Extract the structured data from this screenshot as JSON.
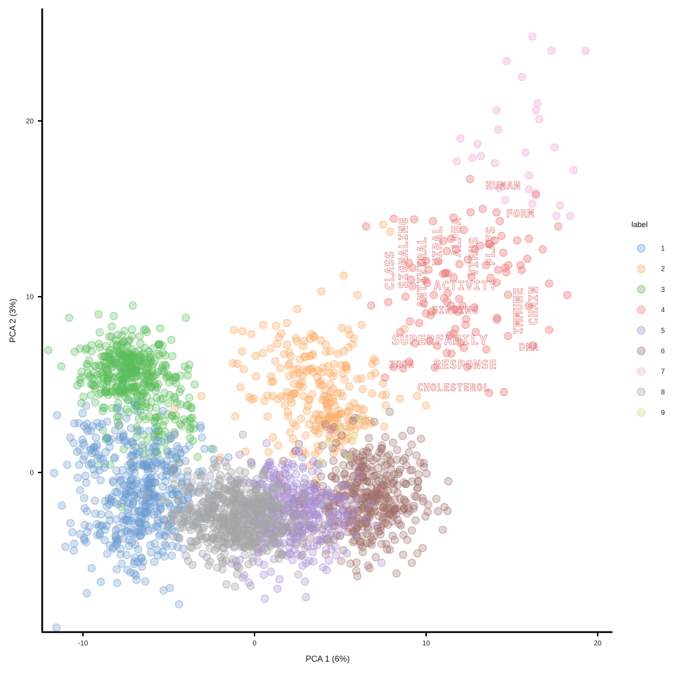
{
  "chart_data": {
    "type": "scatter",
    "title": "",
    "xlabel": "PCA 1 (6%)",
    "ylabel": "PCA 2 (3%)",
    "xlim": [
      -12.5,
      20.9
    ],
    "ylim": [
      -9.1,
      26.4
    ],
    "xticks": [
      -10,
      0,
      10,
      20
    ],
    "yticks": [
      0,
      10,
      20
    ],
    "grid": false,
    "legend": {
      "title": "label",
      "position": "right",
      "entries": [
        {
          "label": "1",
          "color": "#6b9bd2"
        },
        {
          "label": "2",
          "color": "#fdae6b"
        },
        {
          "label": "3",
          "color": "#5bbd5b"
        },
        {
          "label": "4",
          "color": "#f08080"
        },
        {
          "label": "5",
          "color": "#a58bd0"
        },
        {
          "label": "6",
          "color": "#a0706a"
        },
        {
          "label": "7",
          "color": "#f2b6dc"
        },
        {
          "label": "8",
          "color": "#a5a5a5"
        },
        {
          "label": "9",
          "color": "#d4d98a"
        }
      ]
    },
    "series": [
      {
        "name": "1",
        "color": "#6b9bd2",
        "alpha": 0.3,
        "clusters": [
          {
            "cx": -6.5,
            "cy": -1.5,
            "sx": 1.6,
            "sy": 2.2,
            "n": 420,
            "rot": -0.5
          },
          {
            "cx": -9.0,
            "cy": 1.5,
            "sx": 1.2,
            "sy": 1.2,
            "n": 60,
            "rot": 0
          }
        ]
      },
      {
        "name": "2",
        "color": "#fdae6b",
        "alpha": 0.35,
        "clusters": [
          {
            "cx": 3.5,
            "cy": 5.0,
            "sx": 2.2,
            "sy": 1.7,
            "n": 190,
            "rot": 0.2
          },
          {
            "cx": 4.8,
            "cy": 2.8,
            "sx": 1.0,
            "sy": 0.6,
            "n": 60,
            "rot": 0
          }
        ]
      },
      {
        "name": "3",
        "color": "#5bbd5b",
        "alpha": 0.3,
        "clusters": [
          {
            "cx": -7.5,
            "cy": 5.8,
            "sx": 1.3,
            "sy": 1.0,
            "n": 330,
            "rot": 0
          },
          {
            "cx": -5.5,
            "cy": 3.0,
            "sx": 1.6,
            "sy": 1.6,
            "n": 120,
            "rot": 0.3
          }
        ]
      },
      {
        "name": "4",
        "color": "#f08080",
        "alpha": 0.4,
        "clusters": [
          {
            "cx": 12.0,
            "cy": 10.0,
            "sx": 2.2,
            "sy": 2.4,
            "n": 70,
            "rot": 0.3
          }
        ]
      },
      {
        "name": "5",
        "color": "#a58bd0",
        "alpha": 0.3,
        "clusters": [
          {
            "cx": 2.0,
            "cy": -2.2,
            "sx": 1.8,
            "sy": 1.6,
            "n": 420,
            "rot": 0.1
          }
        ]
      },
      {
        "name": "6",
        "color": "#a0706a",
        "alpha": 0.3,
        "clusters": [
          {
            "cx": 6.5,
            "cy": -1.5,
            "sx": 1.6,
            "sy": 1.7,
            "n": 420,
            "rot": 0
          }
        ]
      },
      {
        "name": "7",
        "color": "#f2b6dc",
        "alpha": 0.45,
        "points": [
          [
            16.2,
            24.8
          ],
          [
            17.3,
            24.0
          ],
          [
            19.3,
            24.0
          ],
          [
            14.7,
            23.4
          ],
          [
            15.6,
            22.5
          ],
          [
            12.0,
            19.0
          ],
          [
            14.1,
            20.6
          ],
          [
            16.5,
            21.0
          ],
          [
            16.4,
            20.6
          ],
          [
            16.6,
            20.1
          ],
          [
            14.2,
            19.5
          ],
          [
            13.0,
            18.7
          ],
          [
            13.2,
            18.0
          ],
          [
            15.8,
            18.2
          ],
          [
            17.5,
            18.5
          ],
          [
            11.8,
            17.7
          ],
          [
            12.7,
            17.9
          ],
          [
            14.0,
            17.6
          ],
          [
            18.6,
            17.2
          ],
          [
            16.0,
            16.9
          ],
          [
            14.3,
            16.2
          ],
          [
            16.0,
            16.1
          ],
          [
            14.6,
            15.5
          ],
          [
            16.4,
            15.9
          ],
          [
            16.2,
            15.3
          ],
          [
            17.8,
            15.2
          ],
          [
            18.4,
            14.6
          ],
          [
            17.6,
            14.6
          ]
        ]
      },
      {
        "name": "8",
        "color": "#a5a5a5",
        "alpha": 0.35,
        "clusters": [
          {
            "cx": -1.3,
            "cy": -2.5,
            "sx": 1.7,
            "sy": 1.3,
            "n": 520,
            "rot": 0
          }
        ]
      },
      {
        "name": "9",
        "color": "#d4d98a",
        "alpha": 0.45,
        "points": [
          [
            5.0,
            2.5
          ],
          [
            4.3,
            1.7
          ],
          [
            5.8,
            2.1
          ],
          [
            6.2,
            3.0
          ],
          [
            3.9,
            0.6
          ],
          [
            5.5,
            0.9
          ]
        ]
      }
    ],
    "outliers": {
      "4": [
        [
          13.3,
          15.0
        ],
        [
          11.6,
          14.5
        ],
        [
          12.6,
          14.8
        ],
        [
          14.1,
          14.8
        ],
        [
          10.4,
          14.3
        ],
        [
          14.3,
          14.3
        ],
        [
          9.3,
          14.4
        ],
        [
          6.5,
          14.0
        ],
        [
          12.2,
          13.8
        ],
        [
          15.3,
          13.2
        ],
        [
          16.8,
          12.7
        ],
        [
          17.7,
          14.0
        ],
        [
          14.5,
          12.5
        ],
        [
          14.0,
          13.2
        ],
        [
          11.2,
          12.6
        ],
        [
          13.5,
          11.8
        ],
        [
          14.8,
          11.8
        ],
        [
          11.0,
          11.3
        ],
        [
          9.2,
          10.6
        ],
        [
          8.8,
          10.0
        ],
        [
          6.8,
          9.5
        ],
        [
          7.8,
          9.7
        ],
        [
          9.6,
          8.5
        ],
        [
          12.3,
          8.4
        ],
        [
          10.2,
          7.5
        ],
        [
          11.6,
          7.9
        ],
        [
          13.5,
          7.0
        ],
        [
          12.2,
          7.1
        ],
        [
          7.6,
          5.4
        ],
        [
          8.1,
          6.0
        ],
        [
          9.0,
          6.3
        ],
        [
          11.2,
          6.8
        ],
        [
          12.4,
          6.0
        ],
        [
          15.5,
          11.8
        ],
        [
          16.4,
          15.8
        ],
        [
          16.0,
          13.3
        ]
      ],
      "1": [
        [
          -10.2,
          1.3
        ],
        [
          -10.3,
          -0.3
        ],
        [
          -7.6,
          -2.7
        ],
        [
          -6.8,
          -5.1
        ],
        [
          -5.3,
          -6.7
        ],
        [
          -4.4,
          -7.5
        ],
        [
          -9.3,
          -1.6
        ]
      ],
      "3": [
        [
          -10.8,
          8.8
        ],
        [
          -9.1,
          9.0
        ],
        [
          -7.1,
          9.5
        ],
        [
          -4.0,
          8.8
        ],
        [
          -8.2,
          8.9
        ],
        [
          -5.5,
          8.2
        ]
      ],
      "2": [
        [
          3.9,
          10.3
        ],
        [
          5.2,
          11.2
        ],
        [
          2.5,
          9.3
        ],
        [
          -1.2,
          8.1
        ],
        [
          0.5,
          8.4
        ],
        [
          6.0,
          10.1
        ],
        [
          7.5,
          14.1
        ],
        [
          7.9,
          13.7
        ],
        [
          10.0,
          3.8
        ]
      ],
      "5": [
        [
          3.0,
          -7.1
        ],
        [
          2.8,
          -5.3
        ],
        [
          4.0,
          -5.4
        ]
      ],
      "6": [
        [
          10.6,
          -1.5
        ],
        [
          11.3,
          -0.5
        ],
        [
          9.8,
          -4.3
        ],
        [
          6.0,
          -5.9
        ]
      ]
    },
    "annotations": [
      {
        "text": "HUMAN",
        "x": 14.5,
        "y": 16.3,
        "rotate": 0,
        "size": 15
      },
      {
        "text": "FORM",
        "x": 15.5,
        "y": 14.7,
        "rotate": 0,
        "size": 15
      },
      {
        "text": "CLASS",
        "x": 7.9,
        "y": 11.5,
        "rotate": -90,
        "size": 17
      },
      {
        "text": "SIGNALING",
        "x": 8.7,
        "y": 12.5,
        "rotate": -90,
        "size": 17
      },
      {
        "text": "ANTIVIRAL",
        "x": 9.8,
        "y": 11.4,
        "rotate": -90,
        "size": 17
      },
      {
        "text": "VIRAL",
        "x": 10.7,
        "y": 12.9,
        "rotate": -90,
        "size": 17
      },
      {
        "text": "ALPHA",
        "x": 11.8,
        "y": 13.4,
        "rotate": -90,
        "size": 17
      },
      {
        "text": "VIRUS",
        "x": 12.8,
        "y": 12.3,
        "rotate": -90,
        "size": 17
      },
      {
        "text": "PLAYS",
        "x": 13.8,
        "y": 12.9,
        "rotate": -90,
        "size": 17
      },
      {
        "text": "ACTIVITY",
        "x": 12.3,
        "y": 10.6,
        "rotate": 0,
        "size": 17
      },
      {
        "text": "BINDING",
        "x": 11.7,
        "y": 9.2,
        "rotate": 0,
        "size": 14
      },
      {
        "text": "IMMUNE",
        "x": 15.4,
        "y": 9.2,
        "rotate": -90,
        "size": 17
      },
      {
        "text": "CHAIN",
        "x": 16.3,
        "y": 9.5,
        "rotate": -90,
        "size": 17
      },
      {
        "text": "SUPERFAMILY",
        "x": 10.8,
        "y": 7.5,
        "rotate": 0,
        "size": 19
      },
      {
        "text": "DNA",
        "x": 16.0,
        "y": 7.1,
        "rotate": 0,
        "size": 14
      },
      {
        "text": "IRON",
        "x": 8.6,
        "y": 6.1,
        "rotate": 0,
        "size": 13
      },
      {
        "text": "RESPONSE",
        "x": 12.3,
        "y": 6.1,
        "rotate": 0,
        "size": 17
      },
      {
        "text": "CHOLESTEROL",
        "x": 11.6,
        "y": 4.8,
        "rotate": 0,
        "size": 14
      }
    ]
  }
}
